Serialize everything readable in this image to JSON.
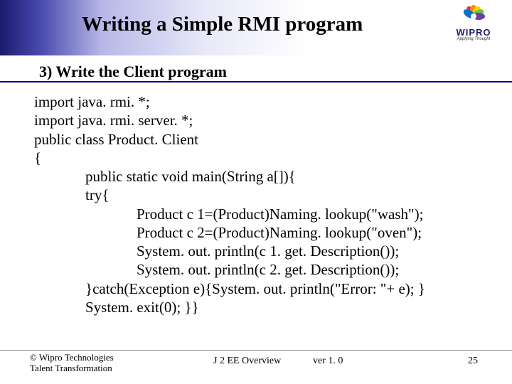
{
  "header": {
    "title": "Writing a Simple RMI program",
    "logo_text": "WIPRO",
    "logo_tagline": "Applying Thought",
    "gradient_start": "#1a1a6e",
    "gradient_end": "#ffffff",
    "title_fontsize": 29,
    "title_color": "#000000"
  },
  "subtitle": {
    "text": "3) Write the Client program",
    "fontsize": 22,
    "underline_color": "#000080"
  },
  "code": {
    "fontsize": 21,
    "color": "#000000",
    "lines": [
      {
        "indent": 0,
        "text": "import java. rmi. *;"
      },
      {
        "indent": 0,
        "text": "import java. rmi. server. *;"
      },
      {
        "indent": 0,
        "text": "public class Product. Client"
      },
      {
        "indent": 0,
        "text": "{"
      },
      {
        "indent": 1,
        "text": "public static void main(String a[]){"
      },
      {
        "indent": 1,
        "text": "try{"
      },
      {
        "indent": 2,
        "text": "Product c 1=(Product)Naming. lookup(\"wash\");"
      },
      {
        "indent": 2,
        "text": "Product c 2=(Product)Naming. lookup(\"oven\");"
      },
      {
        "indent": 2,
        "text": "System. out. println(c 1. get. Description());"
      },
      {
        "indent": 2,
        "text": "System. out. println(c 2. get. Description());"
      },
      {
        "indent": 1,
        "text": "}catch(Exception e){System. out. println(\"Error: \"+ e); }"
      },
      {
        "indent": 1,
        "text": "System. exit(0); }}"
      }
    ]
  },
  "footer": {
    "copyright_line1": "© Wipro Technologies",
    "copyright_line2": "Talent Transformation",
    "center": "J 2 EE Overview",
    "version": "ver 1. 0",
    "page": "25",
    "fontsize": 13,
    "line_color": "#888888"
  },
  "logo_colors": {
    "red": "#e03c31",
    "orange": "#f68b1f",
    "yellow": "#ffd200",
    "green": "#6cc24a",
    "blue": "#0072ce",
    "purple": "#6e3fa3"
  }
}
